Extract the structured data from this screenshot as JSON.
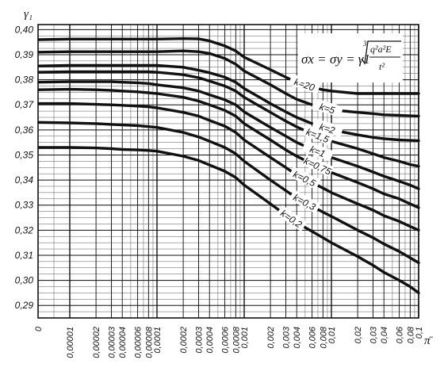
{
  "chart_data": {
    "type": "line",
    "title": "",
    "ylabel": "γ₁",
    "xlabel": "π̄",
    "formula": {
      "lhs": "σx = σy = γ1",
      "root_index": "3",
      "numerator": "q²a²E",
      "denominator": "t²"
    },
    "x_tick_labels": [
      "0",
      "0,00001",
      "0,00002",
      "0,00003",
      "0,00004",
      "0,00006",
      "0,00008",
      "0,0001",
      "0,0002",
      "0,0003",
      "0,0004",
      "0,0006",
      "0,0008",
      "0,001",
      "0,002",
      "0,003",
      "0,004",
      "0,006",
      "0,008",
      "0,01",
      "0,02",
      "0,03",
      "0,04",
      "0,06",
      "0,08",
      "0,1"
    ],
    "y_tick_labels": [
      "0,29",
      "0,30",
      "0,31",
      "0,32",
      "0,33",
      "0,34",
      "0,35",
      "0,36",
      "0,37",
      "0,38",
      "0,39",
      "0,40"
    ],
    "ylim": [
      0.285,
      0.402
    ],
    "grid": true,
    "series": [
      {
        "name": "k=20",
        "values": [
          0.396,
          0.3962,
          0.3962,
          0.3962,
          0.3962,
          0.3962,
          0.3962,
          0.3962,
          0.3964,
          0.3963,
          0.3955,
          0.3935,
          0.3915,
          0.389,
          0.384,
          0.381,
          0.379,
          0.377,
          0.376,
          0.3755,
          0.3745,
          0.3745,
          0.3745,
          0.3745,
          0.3745,
          0.3745
        ]
      },
      {
        "name": "k=5",
        "values": [
          0.391,
          0.3912,
          0.3912,
          0.3912,
          0.3912,
          0.3912,
          0.3912,
          0.3912,
          0.3915,
          0.3912,
          0.3905,
          0.3885,
          0.3862,
          0.3835,
          0.378,
          0.3745,
          0.3722,
          0.37,
          0.369,
          0.368,
          0.367,
          0.3665,
          0.366,
          0.3658,
          0.3656,
          0.3655
        ]
      },
      {
        "name": "k=2",
        "values": [
          0.3855,
          0.3857,
          0.3857,
          0.3857,
          0.3857,
          0.3857,
          0.3857,
          0.3857,
          0.385,
          0.3838,
          0.3828,
          0.381,
          0.379,
          0.3765,
          0.3705,
          0.3672,
          0.365,
          0.3625,
          0.361,
          0.36,
          0.358,
          0.357,
          0.3565,
          0.356,
          0.3558,
          0.3557
        ]
      },
      {
        "name": "k=1,5",
        "values": [
          0.383,
          0.3832,
          0.3832,
          0.3832,
          0.3832,
          0.3832,
          0.3832,
          0.383,
          0.382,
          0.3808,
          0.3795,
          0.3775,
          0.3755,
          0.373,
          0.367,
          0.3635,
          0.3612,
          0.3585,
          0.3568,
          0.3555,
          0.3525,
          0.3505,
          0.349,
          0.3475,
          0.3462,
          0.3455
        ]
      },
      {
        "name": "k=1",
        "values": [
          0.379,
          0.3792,
          0.3792,
          0.3792,
          0.379,
          0.3788,
          0.3785,
          0.378,
          0.3768,
          0.3755,
          0.374,
          0.372,
          0.37,
          0.3672,
          0.361,
          0.3575,
          0.355,
          0.3522,
          0.3505,
          0.349,
          0.3455,
          0.3432,
          0.3415,
          0.3395,
          0.338,
          0.3365
        ]
      },
      {
        "name": "k=0,75",
        "values": [
          0.376,
          0.3762,
          0.376,
          0.3758,
          0.3755,
          0.3752,
          0.3748,
          0.3745,
          0.373,
          0.3715,
          0.37,
          0.3678,
          0.3655,
          0.3625,
          0.356,
          0.352,
          0.3495,
          0.3465,
          0.3445,
          0.343,
          0.339,
          0.3365,
          0.3345,
          0.3325,
          0.3305,
          0.329
        ]
      },
      {
        "name": "k=0,5",
        "values": [
          0.3705,
          0.3705,
          0.3702,
          0.37,
          0.3698,
          0.3695,
          0.3692,
          0.3688,
          0.367,
          0.3655,
          0.3638,
          0.3615,
          0.359,
          0.356,
          0.349,
          0.345,
          0.342,
          0.339,
          0.3368,
          0.335,
          0.3305,
          0.328,
          0.3258,
          0.3235,
          0.3215,
          0.32
        ]
      },
      {
        "name": "k=0,3",
        "values": [
          0.363,
          0.3628,
          0.3625,
          0.3622,
          0.362,
          0.3617,
          0.3613,
          0.361,
          0.359,
          0.3572,
          0.3555,
          0.353,
          0.3505,
          0.3475,
          0.34,
          0.3358,
          0.3328,
          0.3295,
          0.3272,
          0.3255,
          0.32,
          0.317,
          0.3145,
          0.3115,
          0.309,
          0.307
        ]
      },
      {
        "name": "k=0,2",
        "values": [
          0.353,
          0.353,
          0.3528,
          0.3525,
          0.3522,
          0.352,
          0.3518,
          0.3515,
          0.3495,
          0.3478,
          0.346,
          0.3435,
          0.341,
          0.338,
          0.3305,
          0.326,
          0.323,
          0.3195,
          0.317,
          0.315,
          0.3095,
          0.306,
          0.3032,
          0.3,
          0.2975,
          0.295
        ]
      }
    ]
  }
}
